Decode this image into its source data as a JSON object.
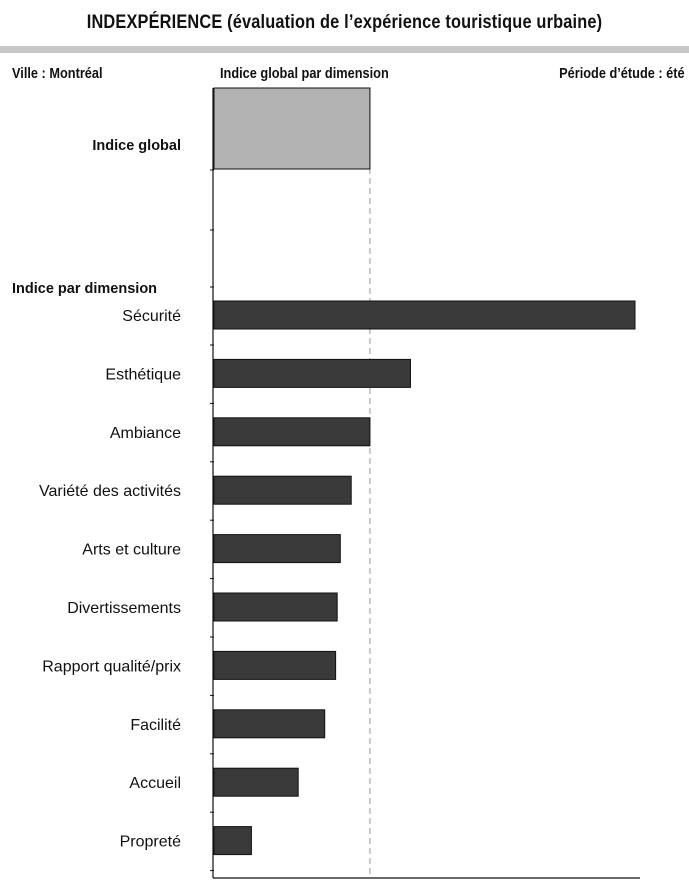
{
  "header": {
    "title": "INDEXPÉRIENCE (évaluation de l’expérience touristique urbaine)",
    "city": "Ville : Montréal",
    "subtitle": "Indice global par dimension",
    "period": "Période d’étude : été"
  },
  "chart_data": {
    "type": "bar",
    "orientation": "horizontal",
    "xlim": [
      0,
      2.7
    ],
    "reference_line": 1.0,
    "grid": false,
    "global": {
      "category": "Indice global",
      "value": 1.0,
      "color": "#b3b3b3"
    },
    "section_label": "Indice par dimension",
    "categories": [
      "Sécurité",
      "Esthétique",
      "Ambiance",
      "Variété des activités",
      "Arts et culture",
      "Divertissements",
      "Rapport qualité/prix",
      "Facilité",
      "Accueil",
      "Propreté"
    ],
    "values": [
      2.7,
      1.26,
      1.0,
      0.88,
      0.81,
      0.79,
      0.78,
      0.71,
      0.54,
      0.24
    ],
    "bar_color": "#3a3a3a"
  }
}
